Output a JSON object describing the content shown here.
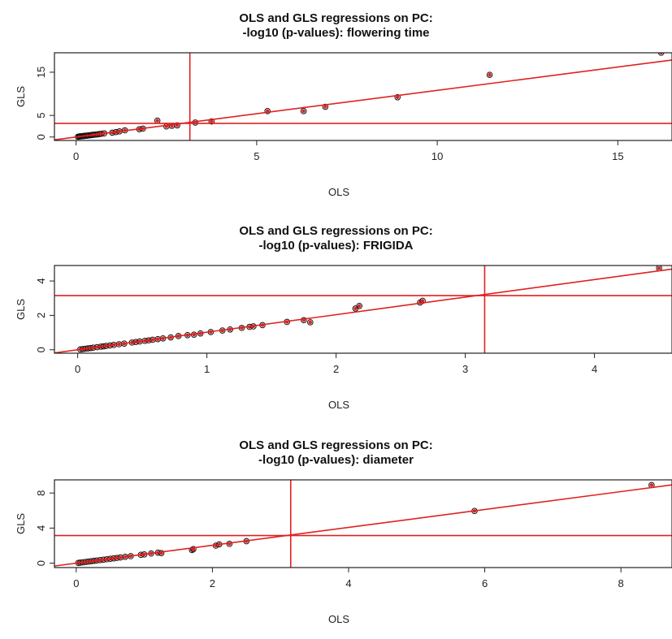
{
  "chart_data": [
    {
      "type": "scatter",
      "title": "OLS and GLS regressions on PC:\n-log10 (p-values): flowering time",
      "xlabel": "OLS",
      "ylabel": "GLS",
      "xlim": [
        -0.6,
        16.5
      ],
      "ylim": [
        -0.8,
        19.5
      ],
      "xticks": [
        0,
        5,
        10,
        15
      ],
      "yticks": [
        0,
        5,
        15
      ],
      "threshold_x": 3.15,
      "threshold_y": 3.15,
      "fit_line": {
        "intercept": 0,
        "slope": 1.08
      },
      "points_red_fill": true,
      "x": [
        0.05,
        0.08,
        0.1,
        0.12,
        0.15,
        0.18,
        0.2,
        0.22,
        0.25,
        0.28,
        0.3,
        0.33,
        0.36,
        0.4,
        0.43,
        0.46,
        0.5,
        0.55,
        0.6,
        0.65,
        0.7,
        0.78,
        1.0,
        1.1,
        1.2,
        1.35,
        1.75,
        1.85,
        2.25,
        2.5,
        2.65,
        2.8,
        3.3,
        3.75,
        5.3,
        6.3,
        6.9,
        8.9,
        11.45,
        16.2
      ],
      "y": [
        0.05,
        0.1,
        0.12,
        0.15,
        0.18,
        0.2,
        0.22,
        0.25,
        0.28,
        0.3,
        0.32,
        0.35,
        0.38,
        0.42,
        0.45,
        0.5,
        0.52,
        0.58,
        0.62,
        0.7,
        0.75,
        0.85,
        1.0,
        1.15,
        1.3,
        1.55,
        1.8,
        1.95,
        3.8,
        2.45,
        2.6,
        2.7,
        3.35,
        3.6,
        6.0,
        6.0,
        7.0,
        9.2,
        14.4,
        19.5
      ]
    },
    {
      "type": "scatter",
      "title": "OLS and GLS regressions on PC:\n-log10 (p-values): FRIGIDA",
      "xlabel": "OLS",
      "ylabel": "GLS",
      "xlim": [
        -0.18,
        4.6
      ],
      "ylim": [
        -0.2,
        4.9
      ],
      "xticks": [
        0,
        1,
        2,
        3,
        4
      ],
      "yticks": [
        0,
        2,
        4
      ],
      "threshold_x": 3.15,
      "threshold_y": 3.15,
      "fit_line": {
        "intercept": 0,
        "slope": 1.02
      },
      "points_red_fill": true,
      "x": [
        0.02,
        0.04,
        0.06,
        0.08,
        0.1,
        0.12,
        0.15,
        0.18,
        0.2,
        0.22,
        0.25,
        0.28,
        0.32,
        0.36,
        0.42,
        0.45,
        0.48,
        0.52,
        0.55,
        0.58,
        0.62,
        0.66,
        0.72,
        0.78,
        0.85,
        0.9,
        0.95,
        1.03,
        1.12,
        1.18,
        1.27,
        1.33,
        1.36,
        1.43,
        1.62,
        1.75,
        1.8,
        2.15,
        2.18,
        2.65,
        2.67,
        4.5
      ],
      "y": [
        0.02,
        0.04,
        0.06,
        0.08,
        0.1,
        0.12,
        0.15,
        0.18,
        0.2,
        0.22,
        0.25,
        0.28,
        0.32,
        0.36,
        0.42,
        0.45,
        0.48,
        0.52,
        0.55,
        0.58,
        0.62,
        0.66,
        0.72,
        0.8,
        0.85,
        0.88,
        0.95,
        1.03,
        1.12,
        1.18,
        1.27,
        1.33,
        1.36,
        1.43,
        1.62,
        1.72,
        1.6,
        2.4,
        2.55,
        2.75,
        2.85,
        4.75
      ]
    },
    {
      "type": "scatter",
      "title": "OLS and GLS regressions on PC:\n-log10 (p-values): diameter",
      "xlabel": "OLS",
      "ylabel": "GLS",
      "xlim": [
        -0.32,
        8.75
      ],
      "ylim": [
        -0.5,
        9.5
      ],
      "xticks": [
        0,
        2,
        4,
        6,
        8
      ],
      "yticks": [
        0,
        4,
        8
      ],
      "threshold_x": 3.15,
      "threshold_y": 3.15,
      "fit_line": {
        "intercept": 0,
        "slope": 1.02
      },
      "points_red_fill": true,
      "x": [
        0.03,
        0.06,
        0.1,
        0.14,
        0.18,
        0.22,
        0.26,
        0.3,
        0.35,
        0.4,
        0.45,
        0.5,
        0.55,
        0.6,
        0.65,
        0.72,
        0.8,
        0.95,
        1.0,
        1.1,
        1.2,
        1.25,
        1.7,
        1.72,
        2.05,
        2.1,
        2.25,
        2.5,
        5.85,
        8.45
      ],
      "y": [
        0.03,
        0.06,
        0.1,
        0.14,
        0.18,
        0.22,
        0.26,
        0.3,
        0.35,
        0.4,
        0.45,
        0.5,
        0.55,
        0.6,
        0.65,
        0.72,
        0.8,
        0.95,
        1.0,
        1.1,
        1.2,
        1.15,
        1.5,
        1.6,
        2.0,
        2.15,
        2.2,
        2.5,
        5.95,
        8.9
      ]
    }
  ]
}
